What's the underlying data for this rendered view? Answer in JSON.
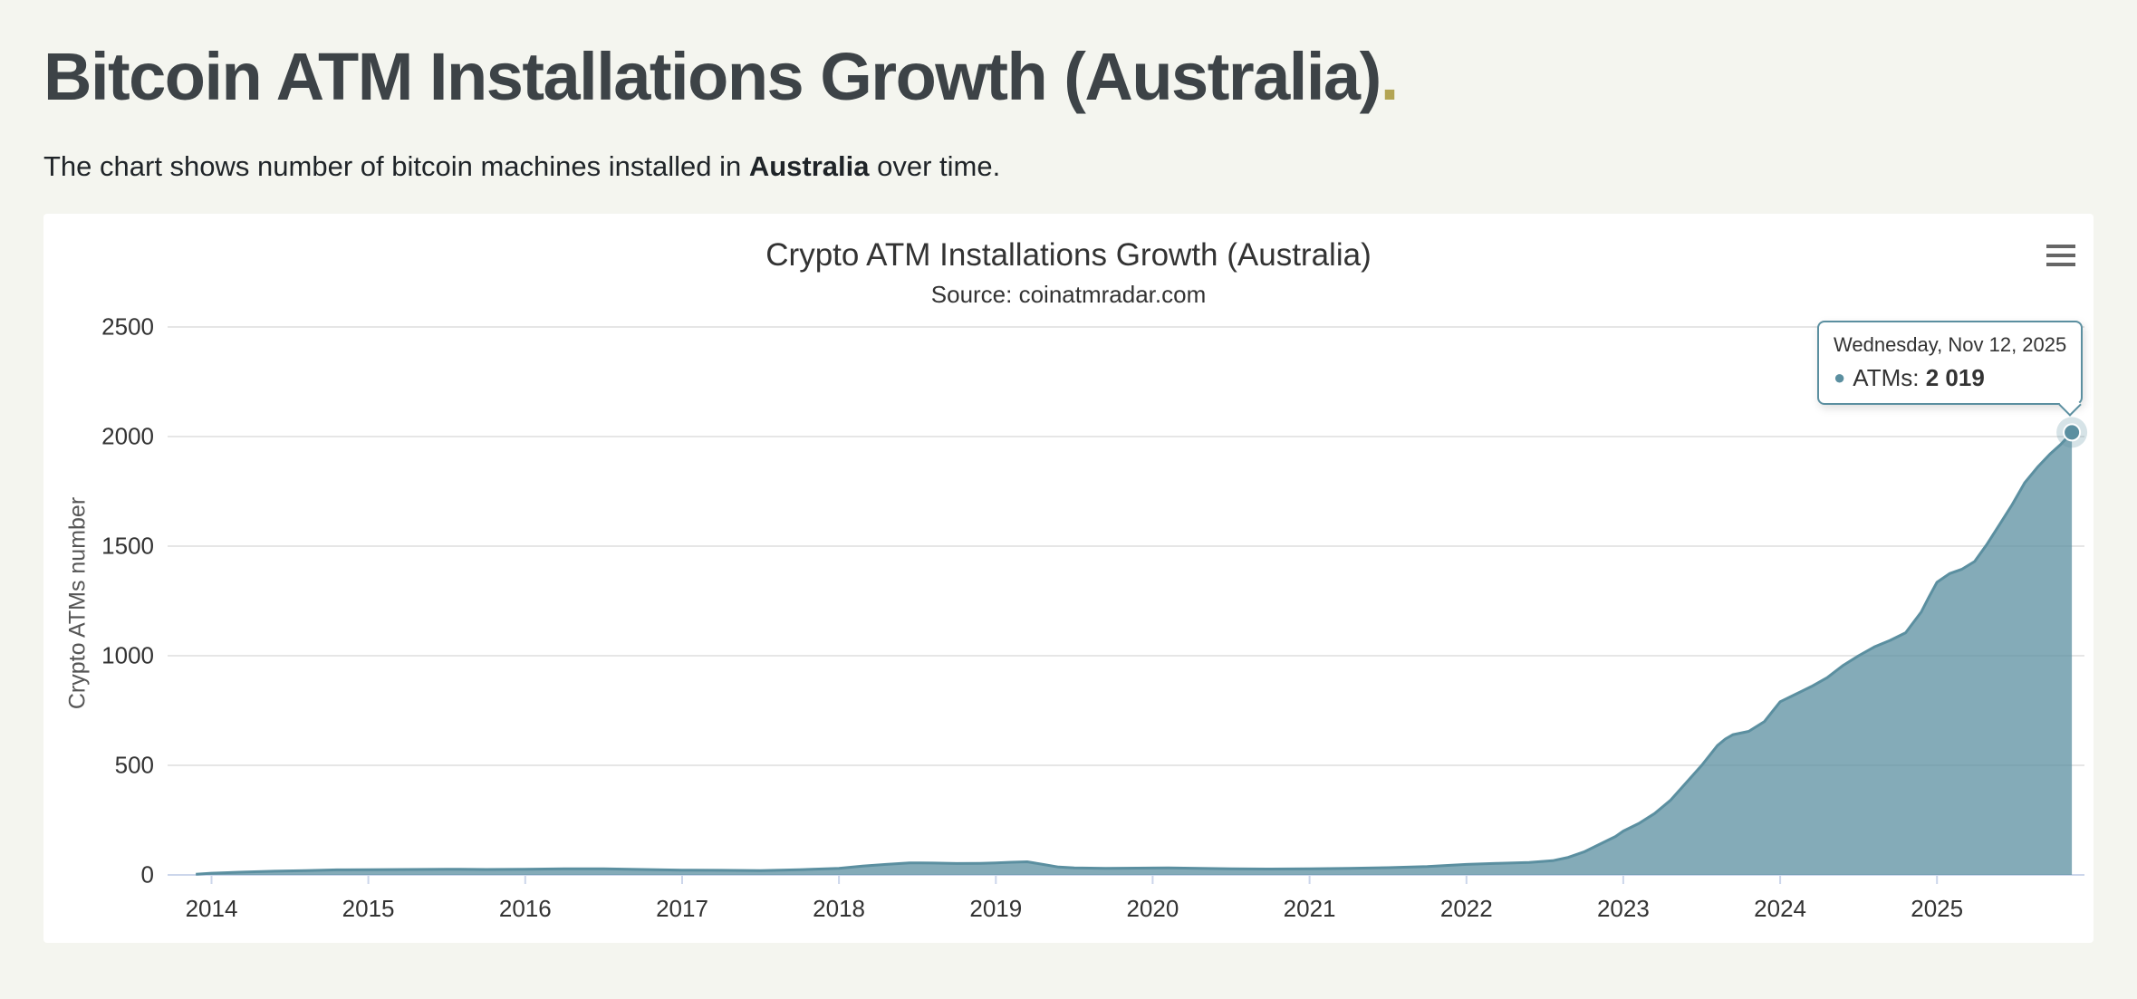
{
  "header": {
    "title": "Bitcoin ATM Installations Growth (Australia)",
    "title_accent": ".",
    "subtitle_prefix": "The chart shows number of bitcoin machines installed in ",
    "subtitle_bold": "Australia",
    "subtitle_suffix": " over time."
  },
  "colors": {
    "page_background": "#f4f5ef",
    "heading": "#3d4347",
    "accent_dot": "#b3a554",
    "series": "#5b8fa0",
    "gridline": "#e6e6e6",
    "axis_line": "#ccd6eb"
  },
  "icons": {
    "context_menu": "hamburger-menu-icon",
    "series_bullet": "dot-icon"
  },
  "chart_data": {
    "type": "area",
    "title": "Crypto ATM Installations Growth (Australia)",
    "subtitle": "Source: coinatmradar.com",
    "xlabel": "",
    "ylabel": "Crypto ATMs number",
    "x_ticks": [
      2014,
      2015,
      2016,
      2017,
      2018,
      2019,
      2020,
      2021,
      2022,
      2023,
      2024,
      2025
    ],
    "y_ticks": [
      0,
      500,
      1000,
      1500,
      2000,
      2500
    ],
    "x_range": [
      2013.72,
      2025.94
    ],
    "y_range": [
      0,
      2500
    ],
    "grid": "horizontal-only",
    "legend": "none",
    "series": [
      {
        "name": "ATMs",
        "color": "#5b8fa0",
        "points": [
          [
            2013.9,
            3
          ],
          [
            2014.0,
            8
          ],
          [
            2014.2,
            13
          ],
          [
            2014.4,
            17
          ],
          [
            2014.6,
            20
          ],
          [
            2014.8,
            23
          ],
          [
            2015.0,
            24
          ],
          [
            2015.25,
            25
          ],
          [
            2015.5,
            26
          ],
          [
            2015.75,
            25
          ],
          [
            2016.0,
            26
          ],
          [
            2016.25,
            28
          ],
          [
            2016.5,
            28
          ],
          [
            2016.75,
            25
          ],
          [
            2017.0,
            22
          ],
          [
            2017.25,
            21
          ],
          [
            2017.5,
            20
          ],
          [
            2017.75,
            24
          ],
          [
            2018.0,
            30
          ],
          [
            2018.15,
            40
          ],
          [
            2018.3,
            48
          ],
          [
            2018.45,
            55
          ],
          [
            2018.6,
            54
          ],
          [
            2018.75,
            52
          ],
          [
            2018.9,
            53
          ],
          [
            2019.0,
            55
          ],
          [
            2019.1,
            58
          ],
          [
            2019.2,
            60
          ],
          [
            2019.3,
            48
          ],
          [
            2019.4,
            36
          ],
          [
            2019.5,
            32
          ],
          [
            2019.7,
            30
          ],
          [
            2019.9,
            31
          ],
          [
            2020.1,
            32
          ],
          [
            2020.3,
            30
          ],
          [
            2020.5,
            28
          ],
          [
            2020.75,
            27
          ],
          [
            2021.0,
            28
          ],
          [
            2021.25,
            30
          ],
          [
            2021.5,
            33
          ],
          [
            2021.75,
            38
          ],
          [
            2022.0,
            48
          ],
          [
            2022.2,
            53
          ],
          [
            2022.4,
            57
          ],
          [
            2022.55,
            65
          ],
          [
            2022.65,
            80
          ],
          [
            2022.75,
            105
          ],
          [
            2022.85,
            140
          ],
          [
            2022.95,
            175
          ],
          [
            2023.0,
            200
          ],
          [
            2023.1,
            235
          ],
          [
            2023.2,
            280
          ],
          [
            2023.3,
            340
          ],
          [
            2023.4,
            420
          ],
          [
            2023.5,
            500
          ],
          [
            2023.6,
            590
          ],
          [
            2023.65,
            620
          ],
          [
            2023.7,
            640
          ],
          [
            2023.8,
            655
          ],
          [
            2023.9,
            700
          ],
          [
            2023.95,
            745
          ],
          [
            2024.0,
            790
          ],
          [
            2024.1,
            825
          ],
          [
            2024.2,
            860
          ],
          [
            2024.3,
            900
          ],
          [
            2024.4,
            955
          ],
          [
            2024.5,
            1000
          ],
          [
            2024.6,
            1040
          ],
          [
            2024.7,
            1070
          ],
          [
            2024.8,
            1105
          ],
          [
            2024.9,
            1200
          ],
          [
            2024.95,
            1270
          ],
          [
            2025.0,
            1335
          ],
          [
            2025.08,
            1375
          ],
          [
            2025.16,
            1395
          ],
          [
            2025.24,
            1430
          ],
          [
            2025.32,
            1510
          ],
          [
            2025.4,
            1600
          ],
          [
            2025.48,
            1690
          ],
          [
            2025.56,
            1790
          ],
          [
            2025.64,
            1860
          ],
          [
            2025.72,
            1920
          ],
          [
            2025.79,
            1965
          ],
          [
            2025.86,
            2019
          ]
        ]
      }
    ],
    "last_point": {
      "x": 2025.86,
      "y": 2019
    },
    "tooltip": {
      "date": "Wednesday, Nov 12, 2025",
      "series_label": "ATMs:",
      "value": "2 019"
    }
  }
}
